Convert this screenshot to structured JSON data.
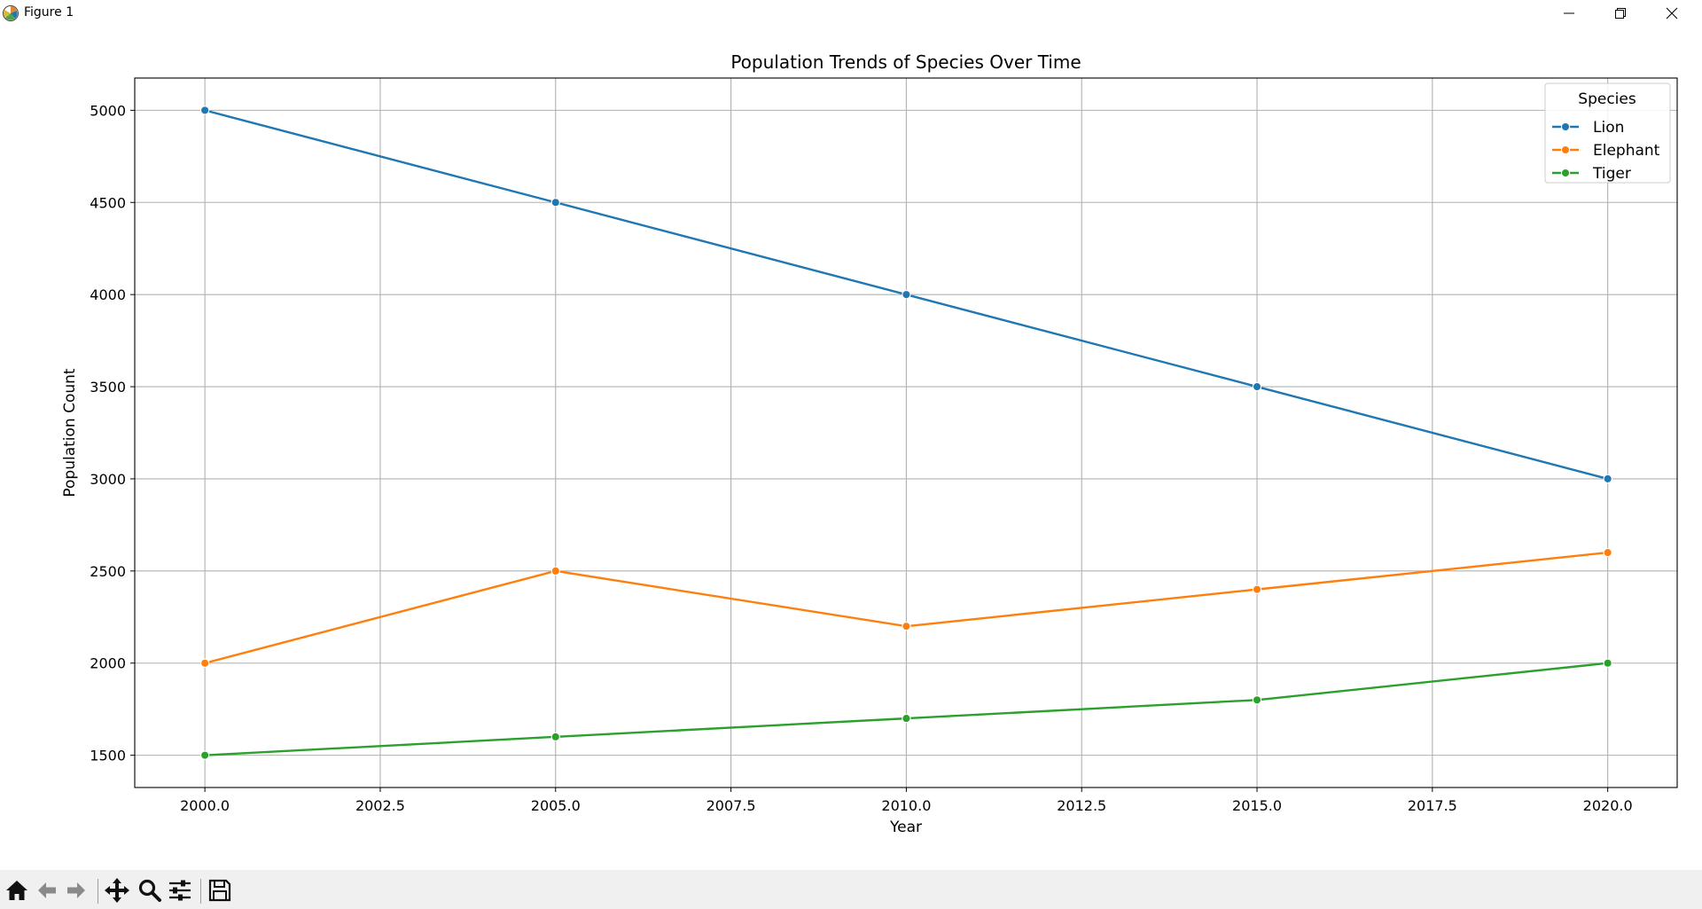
{
  "window": {
    "title": "Figure 1",
    "icons": [
      "matplotlib-logo-icon",
      "minimize-icon",
      "restore-icon",
      "close-icon"
    ]
  },
  "toolbar": {
    "icons": [
      "home-icon",
      "back-arrow-icon",
      "forward-arrow-icon",
      "pan-icon",
      "zoom-icon",
      "configure-subplots-icon",
      "save-icon"
    ]
  },
  "chart_data": {
    "type": "line",
    "title": "Population Trends of Species Over Time",
    "xlabel": "Year",
    "ylabel": "Population Count",
    "x": [
      2000,
      2005,
      2010,
      2015,
      2020
    ],
    "xlim": [
      1999,
      2020.99
    ],
    "ylim": [
      1325,
      5175
    ],
    "xticks": [
      2000.0,
      2002.5,
      2005.0,
      2007.5,
      2010.0,
      2012.5,
      2015.0,
      2017.5,
      2020.0
    ],
    "xtick_labels": [
      "2000.0",
      "2002.5",
      "2005.0",
      "2007.5",
      "2010.0",
      "2012.5",
      "2015.0",
      "2017.5",
      "2020.0"
    ],
    "yticks": [
      1500,
      2000,
      2500,
      3000,
      3500,
      4000,
      4500,
      5000
    ],
    "ytick_labels": [
      "1500",
      "2000",
      "2500",
      "3000",
      "3500",
      "4000",
      "4500",
      "5000"
    ],
    "grid": true,
    "legend": {
      "title": "Species",
      "placement": "top-right"
    },
    "series": [
      {
        "name": "Lion",
        "color": "#1f77b4",
        "values": [
          5000,
          4500,
          4000,
          3500,
          3000
        ]
      },
      {
        "name": "Elephant",
        "color": "#ff7f0e",
        "values": [
          2000,
          2500,
          2200,
          2400,
          2600
        ]
      },
      {
        "name": "Tiger",
        "color": "#2ca02c",
        "values": [
          1500,
          1600,
          1700,
          1800,
          2000
        ]
      }
    ]
  }
}
